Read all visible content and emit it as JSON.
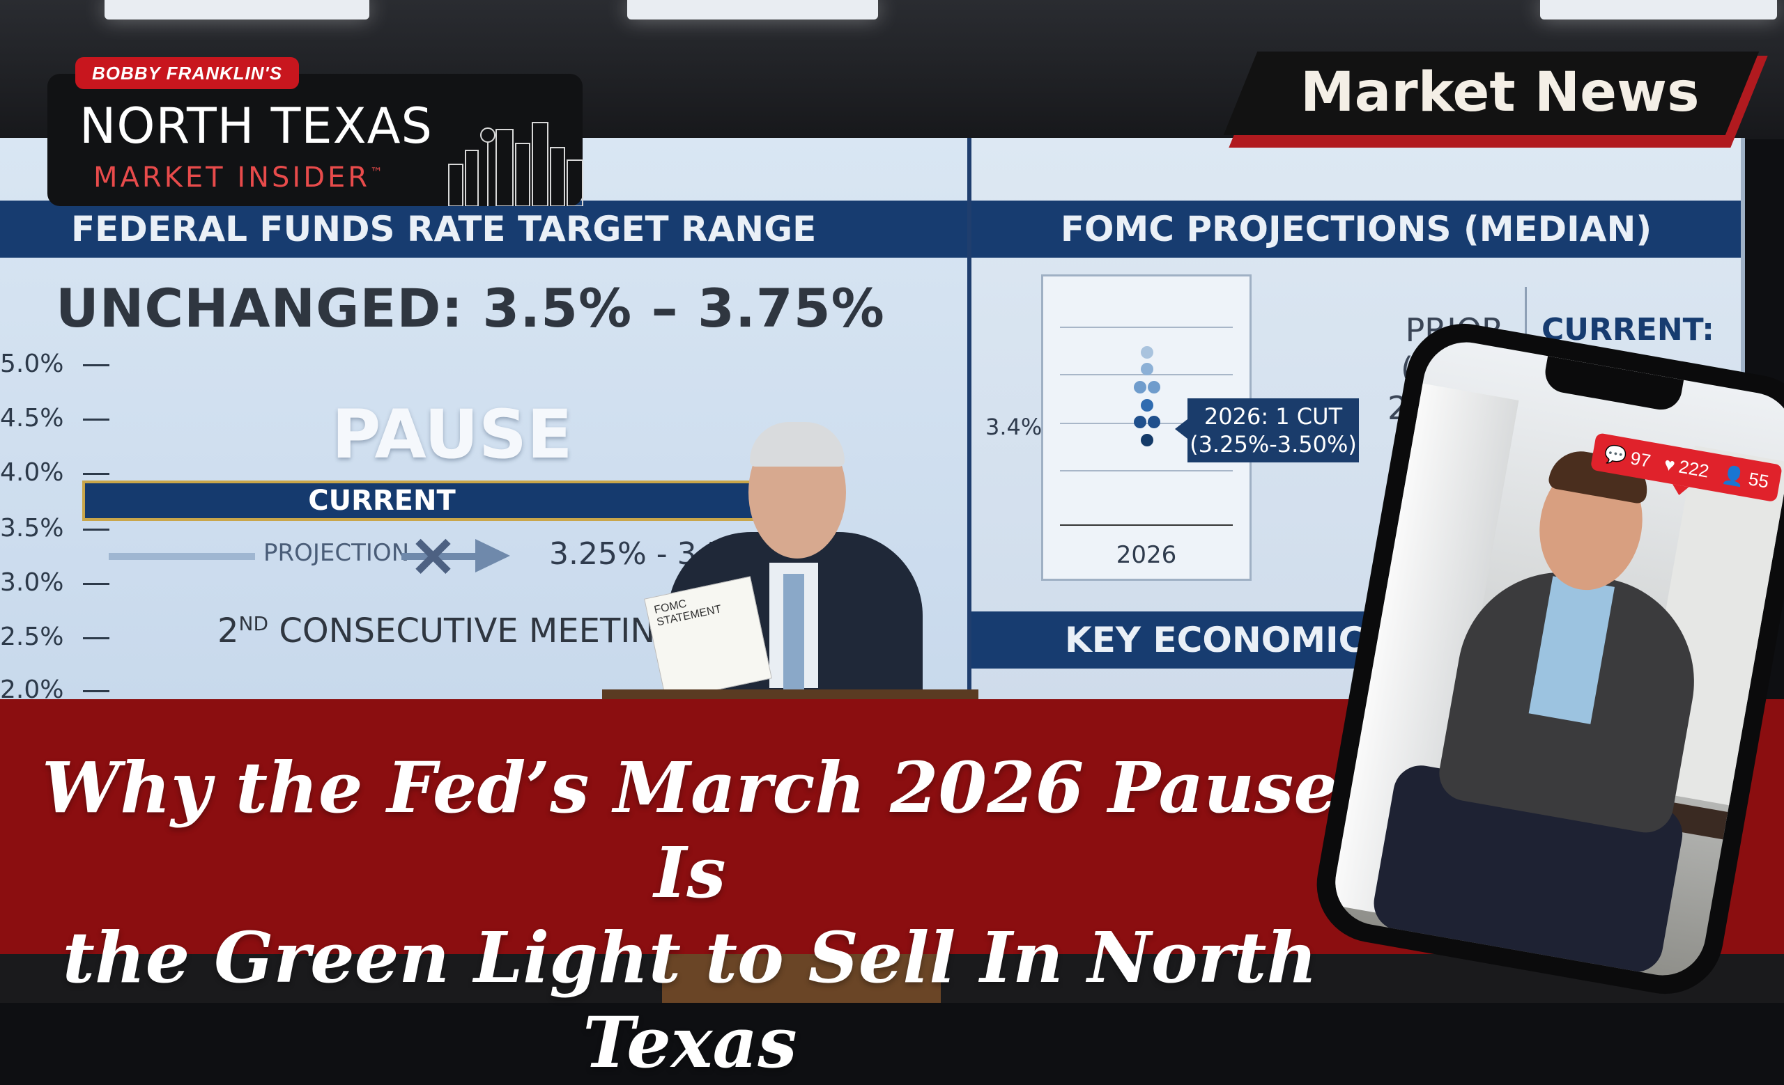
{
  "logo": {
    "tag": "BOBBY FRANKLIN'S",
    "line1": "NORTH TEXAS",
    "line2": "MARKET INSIDER",
    "tm": "™"
  },
  "badge": {
    "label": "Market News"
  },
  "screen": {
    "left": {
      "header": "FEDERAL FUNDS RATE TARGET RANGE",
      "unchanged": "UNCHANGED: 3.5% – 3.75%",
      "ticks": [
        "5.0%",
        "4.5%",
        "4.0%",
        "3.5%",
        "3.0%",
        "2.5%",
        "2.0%"
      ],
      "pause": "PAUSE",
      "current": "CURRENT",
      "projection_label": "PROJECTION",
      "projection_range": "3.25% - 3.50%",
      "consec_num": "2",
      "consec_sup": "ND",
      "consec_rest": " CONSECUTIVE MEETING"
    },
    "right": {
      "header": "FOMC PROJECTIONS (MEDIAN)",
      "level": "3.4%",
      "year": "2026",
      "callout_line1": "2026: 1 CUT",
      "callout_line2": "(3.25%-3.50%)",
      "prior_line1": "PRIOR (DEC):",
      "prior_line2": "2 CUTS",
      "current_label": "CURRENT:",
      "bottom_header": "KEY ECONOMIC PR"
    },
    "paper_text": "FOMC STATEMENT"
  },
  "headline": {
    "line1": "Why the Fed’s March 2026 Pause Is",
    "line2": "the Green Light to Sell In North Texas"
  },
  "phone": {
    "comments": "97",
    "likes": "222",
    "followers": "55",
    "icons": [
      "comment-icon",
      "heart-icon",
      "user-icon"
    ]
  },
  "colors": {
    "brand_red": "#8b0e10",
    "accent_red": "#c8161e",
    "navy": "#173c70"
  }
}
